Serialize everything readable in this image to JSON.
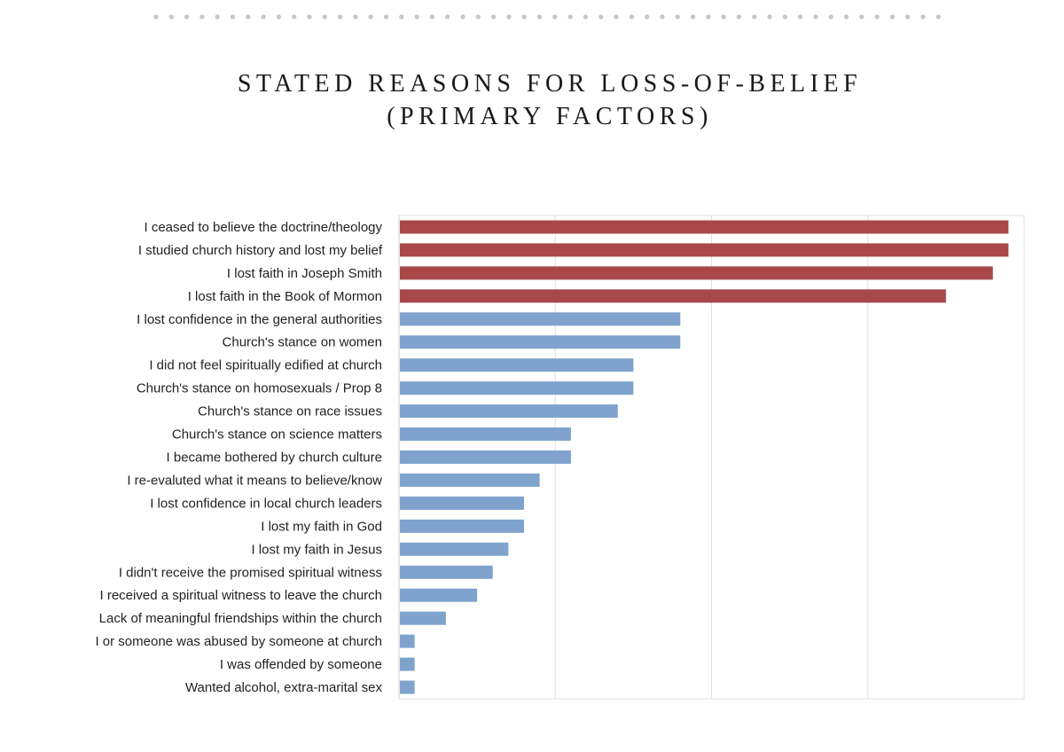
{
  "chart_data": {
    "type": "bar",
    "orientation": "horizontal",
    "title": [
      "STATED REASONS FOR LOSS-OF-BELIEF",
      "(PRIMARY FACTORS)"
    ],
    "xlabel": "",
    "ylabel": "",
    "xlim": [
      0,
      80
    ],
    "grid": true,
    "categories": [
      "I ceased to believe the doctrine/theology",
      "I studied church history and lost my belief",
      "I lost faith in Joseph Smith",
      "I lost faith in the Book of Mormon",
      "I lost confidence in the general authorities",
      "Church's stance on women",
      "I did not feel spiritually edified at church",
      "Church's stance on homosexuals / Prop 8",
      "Church's stance on race issues",
      "Church's stance on science  matters",
      "I became bothered by church culture",
      "I re-evaluted what it means to believe/know",
      "I lost confidence in local church leaders",
      "I lost my faith in God",
      "I lost my faith in Jesus",
      "I didn't receive the promised spiritual witness",
      "I received a spiritual witness to leave the church",
      "Lack of meaningful friendships within the church",
      "I or someone was abused by someone at church",
      "I was offended by someone",
      "Wanted alcohol, extra-marital sex"
    ],
    "values": [
      78,
      78,
      76,
      70,
      36,
      36,
      30,
      30,
      28,
      22,
      22,
      18,
      16,
      16,
      14,
      12,
      10,
      6,
      2,
      2,
      2
    ],
    "highlight_count": 4,
    "colors": {
      "highlight": "#a84848",
      "normal": "#7fa3cd",
      "grid": "#dde1e6",
      "axis": "#cccccc"
    }
  }
}
